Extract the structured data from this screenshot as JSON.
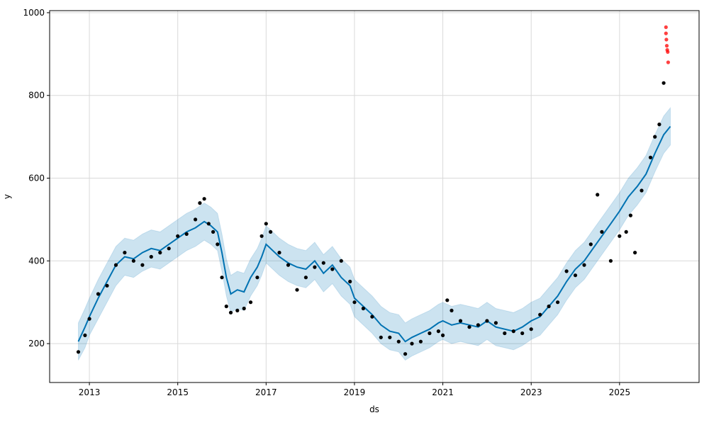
{
  "chart_data": {
    "type": "line",
    "xlabel": "ds",
    "ylabel": "y",
    "xlim": [
      2012.1,
      2026.8
    ],
    "ylim": [
      106,
      1005
    ],
    "grid": true,
    "x_ticks": [
      2013,
      2015,
      2017,
      2019,
      2021,
      2023,
      2025
    ],
    "x_tick_labels": [
      "2013",
      "2015",
      "2017",
      "2019",
      "2021",
      "2023",
      "2025"
    ],
    "y_ticks": [
      200,
      400,
      600,
      800,
      1000
    ],
    "y_tick_labels": [
      "200",
      "400",
      "600",
      "800",
      "1000"
    ],
    "colors": {
      "forecast": "#0072B2",
      "band": "#0072B2",
      "observed": "#000000",
      "outlier": "#FF0000",
      "grid": "#d9d9d9"
    },
    "forecast": {
      "x": [
        2012.75,
        2012.9,
        2013.0,
        2013.2,
        2013.4,
        2013.6,
        2013.8,
        2014.0,
        2014.2,
        2014.4,
        2014.6,
        2014.8,
        2015.0,
        2015.2,
        2015.4,
        2015.6,
        2015.75,
        2015.9,
        2016.0,
        2016.1,
        2016.2,
        2016.35,
        2016.5,
        2016.65,
        2016.8,
        2016.9,
        2017.0,
        2017.1,
        2017.3,
        2017.5,
        2017.7,
        2017.9,
        2018.1,
        2018.3,
        2018.5,
        2018.7,
        2018.9,
        2019.0,
        2019.2,
        2019.4,
        2019.6,
        2019.8,
        2020.0,
        2020.15,
        2020.3,
        2020.5,
        2020.7,
        2020.9,
        2021.0,
        2021.2,
        2021.4,
        2021.6,
        2021.8,
        2022.0,
        2022.2,
        2022.4,
        2022.6,
        2022.8,
        2023.0,
        2023.2,
        2023.4,
        2023.6,
        2023.8,
        2024.0,
        2024.2,
        2024.4,
        2024.6,
        2024.8,
        2025.0,
        2025.2,
        2025.4,
        2025.6,
        2025.8,
        2026.0,
        2026.15
      ],
      "y": [
        205,
        240,
        265,
        310,
        350,
        390,
        410,
        405,
        420,
        430,
        425,
        440,
        455,
        470,
        480,
        495,
        485,
        470,
        420,
        360,
        320,
        330,
        325,
        360,
        385,
        410,
        440,
        430,
        410,
        395,
        385,
        380,
        400,
        370,
        390,
        360,
        340,
        310,
        290,
        270,
        245,
        230,
        225,
        205,
        215,
        225,
        235,
        250,
        255,
        245,
        250,
        245,
        240,
        255,
        240,
        235,
        230,
        240,
        255,
        265,
        290,
        315,
        350,
        380,
        400,
        430,
        460,
        490,
        520,
        555,
        580,
        610,
        660,
        705,
        725
      ],
      "lower": [
        160,
        190,
        220,
        260,
        300,
        340,
        365,
        360,
        375,
        385,
        380,
        395,
        410,
        425,
        435,
        450,
        440,
        425,
        375,
        315,
        275,
        285,
        280,
        315,
        340,
        365,
        395,
        385,
        365,
        350,
        340,
        335,
        355,
        325,
        345,
        315,
        295,
        265,
        245,
        225,
        200,
        185,
        180,
        160,
        170,
        180,
        190,
        205,
        210,
        200,
        205,
        200,
        195,
        210,
        195,
        190,
        185,
        195,
        210,
        220,
        245,
        270,
        305,
        335,
        355,
        385,
        415,
        445,
        475,
        510,
        535,
        565,
        615,
        660,
        680
      ],
      "upper": [
        250,
        285,
        310,
        355,
        395,
        435,
        455,
        450,
        465,
        475,
        470,
        485,
        500,
        515,
        525,
        540,
        530,
        515,
        465,
        405,
        365,
        375,
        370,
        405,
        430,
        455,
        485,
        475,
        455,
        440,
        430,
        425,
        445,
        415,
        435,
        405,
        385,
        355,
        335,
        315,
        290,
        275,
        270,
        250,
        260,
        270,
        280,
        295,
        300,
        290,
        295,
        290,
        285,
        300,
        285,
        280,
        275,
        285,
        300,
        310,
        335,
        360,
        395,
        425,
        445,
        475,
        505,
        535,
        565,
        600,
        625,
        655,
        705,
        750,
        770
      ]
    },
    "observed": {
      "x": [
        2012.75,
        2012.9,
        2013.0,
        2013.2,
        2013.4,
        2013.6,
        2013.8,
        2014.0,
        2014.2,
        2014.4,
        2014.6,
        2014.8,
        2015.0,
        2015.2,
        2015.4,
        2015.5,
        2015.6,
        2015.7,
        2015.8,
        2015.9,
        2016.0,
        2016.1,
        2016.2,
        2016.35,
        2016.5,
        2016.65,
        2016.8,
        2016.9,
        2017.0,
        2017.1,
        2017.3,
        2017.5,
        2017.7,
        2017.9,
        2018.1,
        2018.3,
        2018.5,
        2018.7,
        2018.9,
        2019.0,
        2019.2,
        2019.4,
        2019.6,
        2019.8,
        2020.0,
        2020.15,
        2020.3,
        2020.5,
        2020.7,
        2020.9,
        2021.0,
        2021.1,
        2021.2,
        2021.4,
        2021.6,
        2021.8,
        2022.0,
        2022.2,
        2022.4,
        2022.6,
        2022.8,
        2023.0,
        2023.2,
        2023.4,
        2023.6,
        2023.8,
        2024.0,
        2024.2,
        2024.35,
        2024.5,
        2024.6,
        2024.8,
        2025.0,
        2025.15,
        2025.25,
        2025.35,
        2025.5,
        2025.7,
        2025.8,
        2025.9,
        2026.0
      ],
      "y": [
        180,
        220,
        260,
        320,
        340,
        390,
        420,
        400,
        390,
        410,
        420,
        430,
        460,
        465,
        500,
        540,
        550,
        490,
        470,
        440,
        360,
        290,
        275,
        280,
        285,
        300,
        360,
        460,
        490,
        470,
        420,
        390,
        330,
        360,
        385,
        395,
        380,
        400,
        350,
        300,
        285,
        265,
        215,
        215,
        205,
        175,
        200,
        205,
        225,
        230,
        220,
        305,
        280,
        255,
        240,
        245,
        255,
        250,
        225,
        230,
        225,
        235,
        270,
        290,
        300,
        375,
        365,
        390,
        440,
        560,
        470,
        400,
        460,
        470,
        510,
        420,
        570,
        650,
        700,
        730,
        830
      ],
      "outliers_x": [
        2026.05,
        2026.05,
        2026.06,
        2026.07,
        2026.08,
        2026.09,
        2026.1
      ],
      "outliers_y": [
        965,
        950,
        935,
        920,
        910,
        905,
        880
      ]
    }
  }
}
